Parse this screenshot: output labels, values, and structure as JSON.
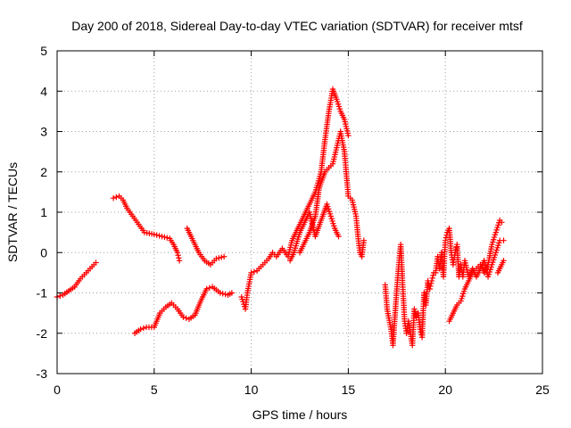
{
  "chart_data": {
    "type": "scatter",
    "title": "Day 200 of 2018, Sidereal Day-to-day VTEC variation (SDTVAR) for receiver mtsf",
    "xlabel": "GPS time / hours",
    "ylabel": "SDTVAR / TECUs",
    "xlim": [
      0,
      25
    ],
    "ylim": [
      -3,
      5
    ],
    "x_ticks": [
      "0",
      "5",
      "10",
      "15",
      "20",
      "25"
    ],
    "y_ticks": [
      "-3",
      "-2",
      "-1",
      "0",
      "1",
      "2",
      "3",
      "4",
      "5"
    ],
    "x_tick_values": [
      0,
      5,
      10,
      15,
      20,
      25
    ],
    "y_tick_values": [
      -3,
      -2,
      -1,
      0,
      1,
      2,
      3,
      4,
      5
    ],
    "grid": true,
    "marker": "+",
    "series": [
      {
        "name": "sdtvar",
        "color": "#ff0000",
        "segments": [
          [
            [
              0.0,
              -1.1
            ],
            [
              0.3,
              -1.05
            ],
            [
              0.6,
              -0.95
            ],
            [
              0.9,
              -0.85
            ],
            [
              1.2,
              -0.65
            ],
            [
              1.5,
              -0.5
            ],
            [
              1.8,
              -0.35
            ],
            [
              2.0,
              -0.25
            ]
          ],
          [
            [
              2.9,
              1.35
            ],
            [
              3.2,
              1.4
            ],
            [
              3.4,
              1.3
            ],
            [
              3.6,
              1.1
            ],
            [
              3.9,
              0.9
            ],
            [
              4.2,
              0.7
            ],
            [
              4.5,
              0.5
            ],
            [
              5.0,
              0.45
            ],
            [
              5.4,
              0.4
            ],
            [
              5.8,
              0.35
            ],
            [
              6.0,
              0.2
            ],
            [
              6.2,
              0.0
            ],
            [
              6.3,
              -0.2
            ]
          ],
          [
            [
              6.7,
              0.6
            ],
            [
              7.0,
              0.3
            ],
            [
              7.3,
              0.0
            ],
            [
              7.6,
              -0.2
            ],
            [
              7.9,
              -0.3
            ],
            [
              8.2,
              -0.15
            ],
            [
              8.6,
              -0.1
            ]
          ],
          [
            [
              4.0,
              -2.0
            ],
            [
              4.3,
              -1.9
            ],
            [
              4.6,
              -1.85
            ],
            [
              5.0,
              -1.85
            ],
            [
              5.3,
              -1.5
            ],
            [
              5.6,
              -1.35
            ],
            [
              5.9,
              -1.25
            ],
            [
              6.2,
              -1.4
            ],
            [
              6.5,
              -1.6
            ],
            [
              6.8,
              -1.65
            ],
            [
              7.1,
              -1.55
            ],
            [
              7.4,
              -1.2
            ],
            [
              7.7,
              -0.9
            ],
            [
              8.0,
              -0.85
            ],
            [
              8.4,
              -1.0
            ],
            [
              8.8,
              -1.05
            ],
            [
              9.0,
              -1.0
            ]
          ],
          [
            [
              9.5,
              -1.1
            ],
            [
              9.7,
              -1.4
            ],
            [
              9.8,
              -1.0
            ],
            [
              10.0,
              -0.5
            ],
            [
              10.3,
              -0.45
            ],
            [
              10.6,
              -0.3
            ],
            [
              10.9,
              -0.15
            ],
            [
              11.1,
              0.0
            ],
            [
              11.3,
              -0.1
            ],
            [
              11.6,
              0.1
            ],
            [
              11.9,
              -0.1
            ],
            [
              12.1,
              0.3
            ],
            [
              12.3,
              0.5
            ],
            [
              12.5,
              0.7
            ],
            [
              12.7,
              0.9
            ],
            [
              12.9,
              1.1
            ],
            [
              13.1,
              1.3
            ],
            [
              13.3,
              1.5
            ],
            [
              13.6,
              2.0
            ],
            [
              13.8,
              2.8
            ],
            [
              14.0,
              3.5
            ],
            [
              14.2,
              4.05
            ],
            [
              14.4,
              3.8
            ],
            [
              14.6,
              3.5
            ],
            [
              14.8,
              3.3
            ],
            [
              15.0,
              2.9
            ]
          ],
          [
            [
              12.5,
              0.0
            ],
            [
              12.8,
              0.3
            ],
            [
              13.0,
              0.5
            ],
            [
              13.3,
              0.9
            ],
            [
              13.5,
              1.6
            ],
            [
              13.8,
              2.0
            ],
            [
              14.0,
              2.1
            ],
            [
              14.2,
              2.2
            ],
            [
              14.4,
              2.6
            ],
            [
              14.6,
              3.0
            ],
            [
              14.8,
              2.5
            ],
            [
              15.0,
              1.4
            ],
            [
              15.2,
              1.3
            ],
            [
              15.4,
              0.9
            ],
            [
              15.5,
              0.4
            ],
            [
              15.6,
              0.0
            ],
            [
              15.7,
              -0.1
            ],
            [
              15.8,
              0.3
            ]
          ],
          [
            [
              12.0,
              -0.2
            ],
            [
              12.2,
              0.0
            ],
            [
              12.5,
              0.5
            ],
            [
              12.8,
              0.8
            ],
            [
              13.0,
              1.0
            ],
            [
              13.3,
              0.4
            ],
            [
              13.6,
              0.8
            ],
            [
              13.9,
              1.2
            ],
            [
              14.1,
              0.9
            ],
            [
              14.3,
              0.6
            ],
            [
              14.5,
              0.4
            ]
          ],
          [
            [
              16.9,
              -0.8
            ],
            [
              17.0,
              -1.4
            ],
            [
              17.2,
              -1.9
            ],
            [
              17.3,
              -2.3
            ],
            [
              17.4,
              -1.6
            ],
            [
              17.5,
              -0.9
            ],
            [
              17.6,
              -0.3
            ],
            [
              17.7,
              0.2
            ],
            [
              17.8,
              -0.8
            ],
            [
              17.9,
              -1.7
            ],
            [
              18.0,
              -2.0
            ],
            [
              18.1,
              -1.7
            ],
            [
              18.3,
              -2.3
            ],
            [
              18.4,
              -1.4
            ],
            [
              18.5,
              -1.6
            ],
            [
              18.6,
              -1.5
            ],
            [
              18.7,
              -1.9
            ],
            [
              18.8,
              -2.1
            ],
            [
              18.9,
              -1.0
            ],
            [
              19.0,
              -1.3
            ],
            [
              19.1,
              -0.7
            ],
            [
              19.2,
              -0.9
            ],
            [
              19.3,
              -0.7
            ],
            [
              19.4,
              -0.5
            ],
            [
              19.5,
              -0.5
            ],
            [
              19.6,
              -0.1
            ],
            [
              19.7,
              -0.4
            ],
            [
              19.8,
              0.0
            ],
            [
              19.9,
              -0.6
            ],
            [
              20.0,
              0.3
            ],
            [
              20.1,
              0.5
            ],
            [
              20.2,
              0.6
            ],
            [
              20.3,
              0.0
            ],
            [
              20.4,
              -0.3
            ],
            [
              20.5,
              0.0
            ],
            [
              20.6,
              0.2
            ],
            [
              20.7,
              -0.6
            ],
            [
              20.8,
              -0.3
            ],
            [
              20.9,
              -0.6
            ],
            [
              21.0,
              -0.2
            ],
            [
              21.2,
              -0.6
            ],
            [
              21.4,
              -0.4
            ],
            [
              21.6,
              -0.6
            ],
            [
              21.8,
              -0.4
            ],
            [
              22.0,
              -0.2
            ],
            [
              22.2,
              -0.6
            ],
            [
              22.4,
              -0.3
            ],
            [
              22.6,
              0.0
            ],
            [
              22.8,
              0.3
            ],
            [
              23.0,
              0.3
            ]
          ],
          [
            [
              20.2,
              -1.7
            ],
            [
              20.4,
              -1.5
            ],
            [
              20.6,
              -1.3
            ],
            [
              20.8,
              -1.2
            ],
            [
              21.0,
              -0.9
            ],
            [
              21.2,
              -0.7
            ],
            [
              21.4,
              -0.5
            ],
            [
              21.6,
              -0.4
            ],
            [
              21.8,
              -0.3
            ],
            [
              22.0,
              -0.5
            ],
            [
              22.2,
              -0.3
            ],
            [
              22.4,
              0.2
            ],
            [
              22.6,
              0.5
            ],
            [
              22.8,
              0.8
            ],
            [
              22.9,
              0.75
            ]
          ],
          [
            [
              22.7,
              -0.5
            ],
            [
              22.9,
              -0.3
            ],
            [
              23.0,
              -0.2
            ]
          ]
        ]
      }
    ]
  }
}
